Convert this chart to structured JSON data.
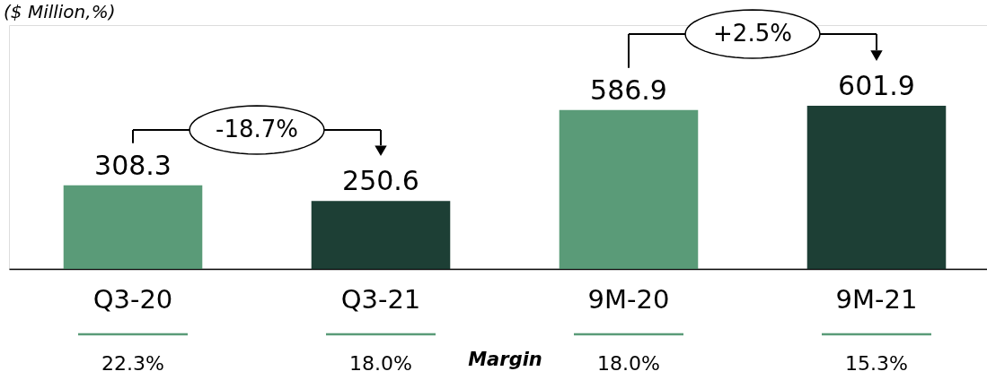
{
  "chart_data": {
    "type": "bar",
    "title": "($ Million,%)",
    "categories": [
      "Q3-20",
      "Q3-21",
      "9M-20",
      "9M-21"
    ],
    "values": [
      308.3,
      250.6,
      586.9,
      601.9
    ],
    "colors": [
      "#5a9b78",
      "#1d3f35",
      "#5a9b78",
      "#1d3f35"
    ],
    "ylim": [
      0,
      900
    ],
    "data_labels": true,
    "tick_labels": "x",
    "annotations": [
      "-18.7%",
      "+2.5%",
      "Margin",
      "22.3%",
      "18.0%",
      "18.0%",
      "15.3%"
    ]
  }
}
